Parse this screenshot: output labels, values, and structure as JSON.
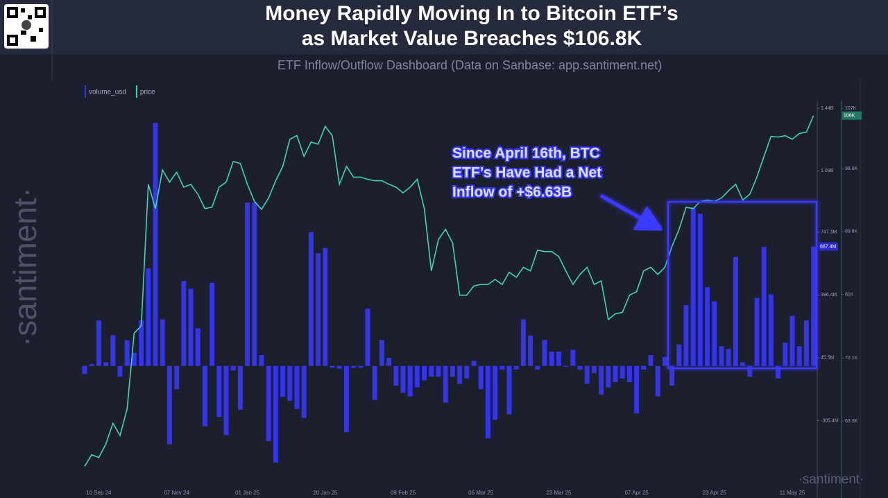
{
  "chart_data": {
    "type": "bar_line",
    "title": [
      "Money Rapidly Moving In to Bitcoin ETF’s",
      "as Market Value Breaches $106.8K"
    ],
    "subtitle": "ETF Inflow/Outflow Dashboard (Data on Sanbase: app.santiment.net)",
    "annotation": [
      "Since April 16th, BTC",
      "ETF’s Have Had a Net",
      "Inflow of +$6.63B"
    ],
    "watermark": "·santiment·",
    "categories": [
      null,
      null,
      "10 Sep 24",
      null,
      null,
      null,
      null,
      null,
      null,
      null,
      null,
      null,
      null,
      "07 Nov 24",
      null,
      null,
      null,
      null,
      null,
      null,
      null,
      null,
      null,
      "01 Jan 25",
      null,
      null,
      null,
      null,
      null,
      null,
      null,
      null,
      null,
      null,
      "20 Jan 25",
      null,
      null,
      null,
      null,
      null,
      null,
      null,
      null,
      null,
      null,
      "09 Feb 25",
      null,
      null,
      null,
      null,
      null,
      null,
      null,
      null,
      null,
      null,
      "06 Mar 25",
      null,
      null,
      null,
      null,
      null,
      null,
      null,
      null,
      null,
      null,
      "23 Mar 25",
      null,
      null,
      null,
      null,
      null,
      null,
      null,
      null,
      null,
      null,
      "07 Apr 25",
      null,
      null,
      null,
      null,
      null,
      null,
      null,
      null,
      null,
      null,
      "23 Apr 25",
      null,
      null,
      null,
      null,
      null,
      null,
      null,
      null,
      null,
      null,
      "11 May 25",
      null,
      null,
      null
    ],
    "series": [
      {
        "name": "volume_usd",
        "color": "#3434e8",
        "end_label": "667.4M",
        "values": [
          -45000000,
          10000000,
          255000000,
          20000000,
          172000000,
          -60000000,
          143000000,
          73000000,
          255000000,
          545000000,
          1358000000,
          260000000,
          -438000000,
          -130000000,
          475000000,
          432000000,
          210000000,
          -337000000,
          465000000,
          -285000000,
          -386000000,
          -25000000,
          -245000000,
          914000000,
          914000000,
          60000000,
          -420000000,
          -540000000,
          -172000000,
          -195000000,
          -240000000,
          -290000000,
          748000000,
          630000000,
          660000000,
          -10000000,
          -15000000,
          -370000000,
          -10000000,
          -10000000,
          320000000,
          -190000000,
          145000000,
          45000000,
          -110000000,
          -150000000,
          -170000000,
          -120000000,
          -80000000,
          -60000000,
          -60000000,
          -205000000,
          -60000000,
          -100000000,
          -70000000,
          30000000,
          -130000000,
          -405000000,
          -300000000,
          -20000000,
          -270000000,
          -20000000,
          260000000,
          170000000,
          -20000000,
          145000000,
          80000000,
          80000000,
          -5000000,
          90000000,
          -20000000,
          -100000000,
          -40000000,
          -160000000,
          -120000000,
          -90000000,
          -70000000,
          -90000000,
          -265000000,
          -20000000,
          60000000,
          -170000000,
          50000000,
          -110000000,
          120000000,
          340000000,
          885000000,
          850000000,
          440000000,
          360000000,
          110000000,
          95000000,
          610000000,
          20000000,
          -60000000,
          380000000,
          665000000,
          400000000,
          -70000000,
          130000000,
          280000000,
          110000000,
          255000000,
          667400000
        ]
      },
      {
        "name": "price",
        "color": "#3fd6b0",
        "axis": "y2",
        "end_label": "106K",
        "values": [
          57000,
          58600,
          58200,
          60100,
          63000,
          61300,
          65000,
          75600,
          76600,
          96400,
          93000,
          98400,
          96700,
          98100,
          96000,
          96400,
          95000,
          93000,
          93200,
          96000,
          96700,
          99600,
          99300,
          96400,
          94000,
          92900,
          94500,
          96900,
          98900,
          102700,
          103200,
          100300,
          102300,
          102000,
          104500,
          103200,
          96400,
          98900,
          97400,
          97400,
          97100,
          96900,
          96900,
          96400,
          96000,
          95200,
          96000,
          97100,
          93000,
          84300,
          88700,
          90100,
          88200,
          80900,
          80900,
          82200,
          82400,
          82400,
          83100,
          82400,
          84100,
          83400,
          84800,
          84300,
          87200,
          87000,
          87000,
          86300,
          84300,
          82400,
          83800,
          84800,
          82400,
          82900,
          77500,
          78300,
          78500,
          80900,
          81400,
          84300,
          84800,
          83800,
          84800,
          87700,
          90100,
          93200,
          93000,
          94000,
          94200,
          94000,
          94500,
          95500,
          96400,
          94200,
          95000,
          97400,
          100300,
          103100,
          103000,
          103200,
          102700,
          103500,
          103700,
          106000
        ]
      }
    ],
    "ylim": [
      -668000000,
      1483000000
    ],
    "yticks": [
      {
        "value": 1440000000,
        "label": "1.44B"
      },
      {
        "value": 1090000000,
        "label": "1.09B"
      },
      {
        "value": 747300000,
        "label": "747.3M"
      },
      {
        "value": 396400000,
        "label": "396.4M"
      },
      {
        "value": 45500000,
        "label": "45.5M"
      },
      {
        "value": -305400000,
        "label": "-305.4M"
      }
    ],
    "y2lim": [
      54300,
      108100
    ],
    "y2ticks": [
      {
        "value": 107000,
        "label": "107K"
      },
      {
        "value": 98600,
        "label": "98.6K"
      },
      {
        "value": 89800,
        "label": "89.8K"
      },
      {
        "value": 81000,
        "label": "81K"
      },
      {
        "value": 72100,
        "label": "72.1K"
      },
      {
        "value": 63300,
        "label": "63.3K"
      }
    ],
    "grid": false
  }
}
